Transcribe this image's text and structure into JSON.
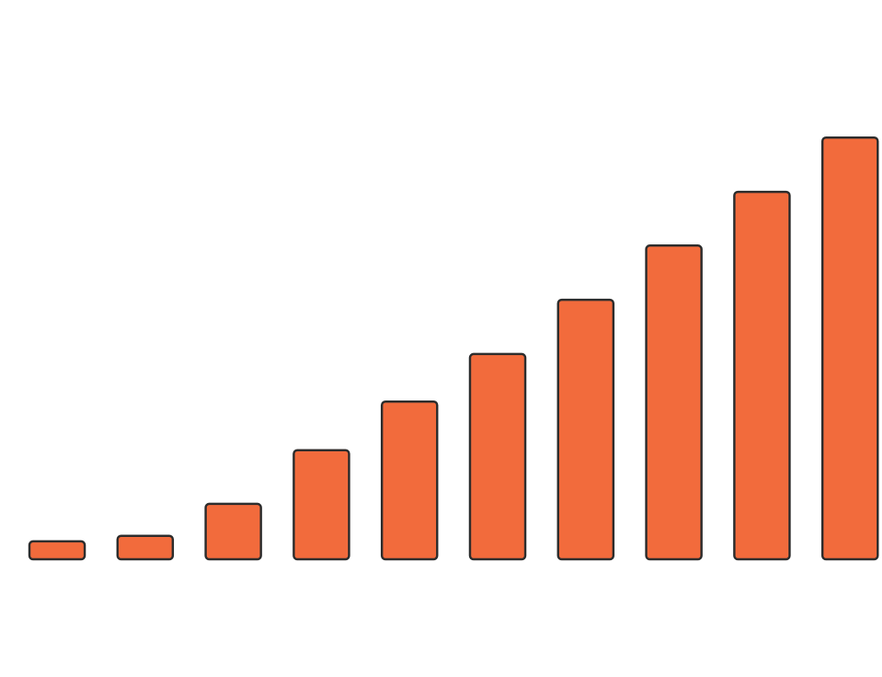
{
  "chart_data": {
    "type": "bar",
    "categories": [
      "",
      "",
      "",
      "",
      "",
      "",
      "",
      "",
      "",
      ""
    ],
    "values": [
      3.2,
      4.2,
      9.9,
      19.5,
      28.2,
      36.7,
      46.4,
      56.1,
      65.7,
      75.4
    ],
    "ylim": [
      0,
      100
    ],
    "title": "",
    "xlabel": "",
    "ylabel": "",
    "grid": false,
    "legend": "none",
    "colors": {
      "bar_fill": "#f26b3c",
      "bar_stroke": "#2c2c2c",
      "background": "#ffffff"
    }
  }
}
